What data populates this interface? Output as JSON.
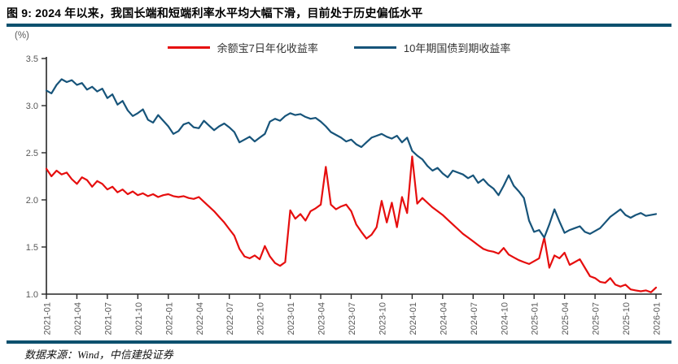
{
  "header": {
    "title": "图 9: 2024 年以来，我国长端和短端利率水平均大幅下滑，目前处于历史偏低水平"
  },
  "footer": {
    "source": "数据来源：Wind，中信建投证券"
  },
  "colors": {
    "accent_bar": "#0D506E",
    "axis": "#262626",
    "tick_text": "#595959",
    "red_series": "#E60E0E",
    "blue_series": "#17547A"
  },
  "chart_data": {
    "type": "line",
    "title": "",
    "unit_label": "(%)",
    "xlabel": "",
    "ylabel": "(%)",
    "ylim": [
      1.0,
      3.5
    ],
    "yticks": [
      1.0,
      1.5,
      2.0,
      2.5,
      3.0,
      3.5
    ],
    "grid": false,
    "legend_position": "top-center",
    "x_start": "2021-01",
    "x_step_months": 0.5,
    "xtick_labels": [
      "2021-01",
      "2021-04",
      "2021-07",
      "2021-10",
      "2022-01",
      "2022-04",
      "2022-07",
      "2022-10",
      "2023-01",
      "2023-04",
      "2023-07",
      "2023-10",
      "2024-01",
      "2024-04",
      "2024-07",
      "2024-10",
      "2025-01",
      "2025-04",
      "2025-07",
      "2025-10",
      "2026-01"
    ],
    "series": [
      {
        "name": "余额宝7日年化收益率",
        "color": "#E60E0E",
        "values": [
          2.33,
          2.25,
          2.31,
          2.27,
          2.29,
          2.22,
          2.17,
          2.24,
          2.21,
          2.14,
          2.2,
          2.17,
          2.11,
          2.14,
          2.08,
          2.11,
          2.06,
          2.09,
          2.05,
          2.07,
          2.04,
          2.06,
          2.03,
          2.05,
          2.06,
          2.04,
          2.03,
          2.04,
          2.02,
          2.01,
          2.03,
          1.98,
          1.93,
          1.88,
          1.82,
          1.76,
          1.69,
          1.62,
          1.48,
          1.4,
          1.38,
          1.41,
          1.37,
          1.51,
          1.4,
          1.33,
          1.3,
          1.34,
          1.89,
          1.8,
          1.85,
          1.78,
          1.88,
          1.91,
          1.95,
          2.35,
          1.95,
          1.9,
          1.93,
          1.95,
          1.88,
          1.74,
          1.66,
          1.59,
          1.63,
          1.71,
          1.99,
          1.76,
          1.97,
          1.71,
          2.03,
          1.86,
          2.46,
          1.96,
          2.02,
          1.97,
          1.92,
          1.88,
          1.84,
          1.79,
          1.74,
          1.69,
          1.64,
          1.6,
          1.56,
          1.52,
          1.48,
          1.46,
          1.45,
          1.43,
          1.49,
          1.42,
          1.39,
          1.36,
          1.34,
          1.32,
          1.35,
          1.38,
          1.6,
          1.28,
          1.41,
          1.38,
          1.44,
          1.31,
          1.34,
          1.37,
          1.28,
          1.19,
          1.17,
          1.13,
          1.12,
          1.17,
          1.1,
          1.08,
          1.1,
          1.05,
          1.04,
          1.03,
          1.04,
          1.02,
          1.07
        ]
      },
      {
        "name": "10年期国债到期收益率",
        "color": "#17547A",
        "values": [
          3.16,
          3.13,
          3.22,
          3.28,
          3.25,
          3.27,
          3.22,
          3.24,
          3.17,
          3.2,
          3.15,
          3.18,
          3.08,
          3.12,
          3.01,
          3.05,
          2.95,
          2.89,
          2.92,
          2.96,
          2.85,
          2.82,
          2.9,
          2.84,
          2.78,
          2.7,
          2.73,
          2.8,
          2.82,
          2.77,
          2.76,
          2.84,
          2.79,
          2.74,
          2.78,
          2.81,
          2.77,
          2.72,
          2.61,
          2.64,
          2.67,
          2.62,
          2.66,
          2.7,
          2.83,
          2.86,
          2.84,
          2.89,
          2.92,
          2.9,
          2.91,
          2.88,
          2.86,
          2.87,
          2.83,
          2.78,
          2.72,
          2.69,
          2.66,
          2.62,
          2.64,
          2.59,
          2.56,
          2.61,
          2.66,
          2.68,
          2.7,
          2.67,
          2.65,
          2.68,
          2.61,
          2.66,
          2.52,
          2.47,
          2.43,
          2.36,
          2.31,
          2.34,
          2.28,
          2.24,
          2.31,
          2.29,
          2.27,
          2.23,
          2.26,
          2.18,
          2.22,
          2.16,
          2.12,
          2.05,
          2.15,
          2.26,
          2.15,
          2.09,
          2.02,
          1.78,
          1.66,
          1.68,
          1.6,
          1.74,
          1.9,
          1.77,
          1.65,
          1.68,
          1.7,
          1.72,
          1.66,
          1.64,
          1.67,
          1.7,
          1.76,
          1.82,
          1.86,
          1.9,
          1.84,
          1.81,
          1.84,
          1.86,
          1.83,
          1.84,
          1.85
        ]
      }
    ]
  }
}
